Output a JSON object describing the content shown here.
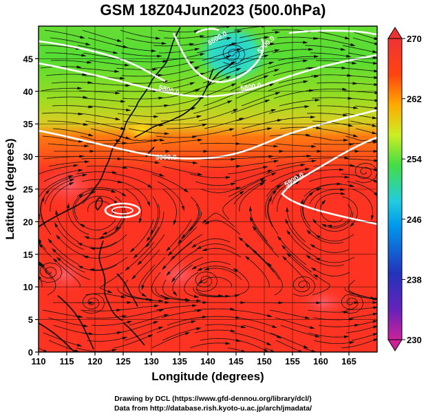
{
  "title": "GSM 18Z04Jun2023 (500.0hPa)",
  "credits": [
    "Drawing by DCL (https://www.gfd-dennou.org/library/dcl/)",
    "Data from http://database.rish.kyoto-u.ac.jp/arch/jmadata/"
  ],
  "chart_data": {
    "type": "heatmap",
    "xlabel": "Longitude (degrees)",
    "ylabel": "Latitude  (degrees)",
    "xlim": [
      110,
      170
    ],
    "ylim": [
      0,
      50
    ],
    "x_ticks": [
      "110",
      "115",
      "120",
      "125",
      "130",
      "135",
      "140",
      "145",
      "150",
      "155",
      "160",
      "165"
    ],
    "y_ticks": [
      "0",
      "5",
      "10",
      "15",
      "20",
      "25",
      "30",
      "35",
      "40",
      "45"
    ],
    "colorbar": {
      "min": 230,
      "max": 270,
      "labels": [
        "270",
        "262",
        "254",
        "246",
        "238",
        "230"
      ],
      "colors": [
        "#cc2299",
        "#3322bb",
        "#0088ee",
        "#22ccdd",
        "#66dd44",
        "#ccee22",
        "#ff8800",
        "#ff3311",
        "#ee3333"
      ]
    },
    "contour_labels": [
      "5900.0",
      "5800.0",
      "5900.0",
      "5800.0",
      "5700.0",
      "5600.0"
    ],
    "grid": true
  }
}
